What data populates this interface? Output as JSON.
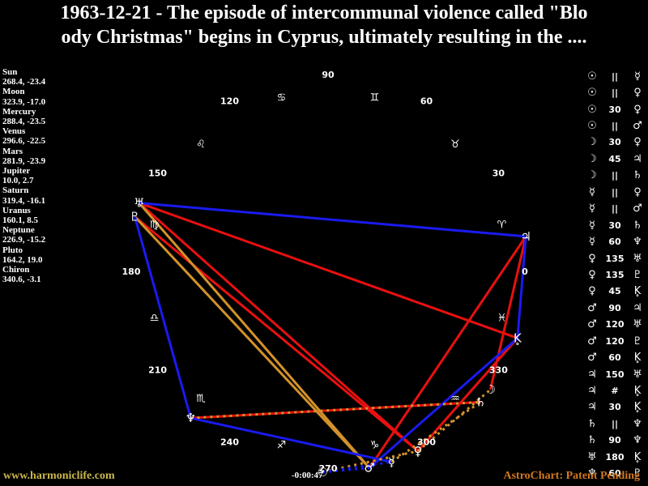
{
  "title": {
    "line1": "1963-12-21 - The episode of intercommunal violence called \"Blo",
    "line2": "ody Christmas\" begins in Cyprus, ultimately resulting in the ...."
  },
  "footer": {
    "left": "www.harmoniclife.com",
    "right": "AstroChart: Patent Pending"
  },
  "chart_data": {
    "type": "radial-astrology-wheel",
    "center": [
      405,
      335
    ],
    "planet_radius": 248,
    "zodiac_radius": 222,
    "label_radius": 243,
    "degree_labels": [
      0,
      30,
      60,
      90,
      120,
      150,
      180,
      210,
      240,
      270,
      300,
      330
    ],
    "zodiac": [
      {
        "name": "Aries",
        "glyph": "♈"
      },
      {
        "name": "Taurus",
        "glyph": "♉"
      },
      {
        "name": "Gemini",
        "glyph": "♊"
      },
      {
        "name": "Cancer",
        "glyph": "♋"
      },
      {
        "name": "Leo",
        "glyph": "♌"
      },
      {
        "name": "Virgo",
        "glyph": "♍"
      },
      {
        "name": "Libra",
        "glyph": "♎"
      },
      {
        "name": "Scorpio",
        "glyph": "♏"
      },
      {
        "name": "Sagittarius",
        "glyph": "♐"
      },
      {
        "name": "Capricorn",
        "glyph": "♑"
      },
      {
        "name": "Aquarius",
        "glyph": "♒"
      },
      {
        "name": "Pisces",
        "glyph": "♓"
      }
    ],
    "planets": [
      {
        "name": "Sun",
        "glyph": "☉",
        "lon": "268.4",
        "dec": "-23.4"
      },
      {
        "name": "Moon",
        "glyph": "☽",
        "lon": "323.9",
        "dec": "-17.0"
      },
      {
        "name": "Mercury",
        "glyph": "☿",
        "lon": "288.4",
        "dec": "-23.5"
      },
      {
        "name": "Venus",
        "glyph": "♀",
        "lon": "296.6",
        "dec": "-22.5"
      },
      {
        "name": "Mars",
        "glyph": "♂",
        "lon": "281.9",
        "dec": "-23.9"
      },
      {
        "name": "Jupiter",
        "glyph": "♃",
        "lon": "10.0",
        "dec": "2.7"
      },
      {
        "name": "Saturn",
        "glyph": "♄",
        "lon": "319.4",
        "dec": "-16.1"
      },
      {
        "name": "Uranus",
        "glyph": "♅",
        "lon": "160.1",
        "dec": "8.5"
      },
      {
        "name": "Neptune",
        "glyph": "♆",
        "lon": "226.9",
        "dec": "-15.2"
      },
      {
        "name": "Pluto",
        "glyph": "♇",
        "lon": "164.2",
        "dec": "19.0"
      },
      {
        "name": "Chiron",
        "glyph": "K̥",
        "lon": "340.6",
        "dec": "-3.1"
      }
    ],
    "colors": {
      "red": "#e81010",
      "blue": "#1a1af0",
      "gold": "#d3922a"
    },
    "lines": [
      {
        "from": "Uranus",
        "to": "Chiron",
        "aspect": "180",
        "color": "red",
        "dotted": false
      },
      {
        "from": "Neptune",
        "to": "Saturn",
        "aspect": "90",
        "color": "red",
        "dotted": false
      },
      {
        "from": "Jupiter",
        "to": "Mars",
        "aspect": "90",
        "color": "red",
        "dotted": false
      },
      {
        "from": "Uranus",
        "to": "Venus",
        "aspect": "135",
        "color": "red",
        "dotted": false
      },
      {
        "from": "Pluto",
        "to": "Venus",
        "aspect": "135",
        "color": "red",
        "dotted": false
      },
      {
        "from": "Chiron",
        "to": "Venus",
        "aspect": "45",
        "color": "red",
        "dotted": false
      },
      {
        "from": "Jupiter",
        "to": "Moon",
        "aspect": "45",
        "color": "red",
        "dotted": false
      },
      {
        "from": "Uranus",
        "to": "Mars",
        "aspect": "120",
        "color": "gold",
        "dotted": false
      },
      {
        "from": "Pluto",
        "to": "Mars",
        "aspect": "120",
        "color": "gold",
        "dotted": false
      },
      {
        "from": "Uranus",
        "to": "Jupiter",
        "aspect": "150",
        "color": "blue",
        "dotted": false
      },
      {
        "from": "Neptune",
        "to": "Mercury",
        "aspect": "60",
        "color": "blue",
        "dotted": false
      },
      {
        "from": "Chiron",
        "to": "Mars",
        "aspect": "60",
        "color": "blue",
        "dotted": false
      },
      {
        "from": "Pluto",
        "to": "Neptune",
        "aspect": "60",
        "color": "blue",
        "dotted": false
      },
      {
        "from": "Jupiter",
        "to": "Chiron",
        "aspect": "30",
        "color": "blue",
        "dotted": false
      },
      {
        "from": "Neptune",
        "to": "Saturn",
        "aspect": "parallel",
        "color": "gold",
        "dotted": true
      },
      {
        "from": "Sun",
        "to": "Venus",
        "aspect": "30",
        "color": "gold",
        "dotted": true
      },
      {
        "from": "Venus",
        "to": "Moon",
        "aspect": "30",
        "color": "gold",
        "dotted": true
      },
      {
        "from": "Mercury",
        "to": "Saturn",
        "aspect": "30",
        "color": "gold",
        "dotted": true
      },
      {
        "from": "Sun",
        "to": "Mercury",
        "aspect": "parallel",
        "color": "blue",
        "dotted": true
      },
      {
        "from": "Sun",
        "to": "Mars",
        "aspect": "parallel",
        "color": "blue",
        "dotted": true
      }
    ],
    "sun_annotation": "-0:00:47"
  },
  "aspect_table": [
    {
      "p1": "☉",
      "aspect": "||",
      "p2": "☿"
    },
    {
      "p1": "☉",
      "aspect": "||",
      "p2": "♀"
    },
    {
      "p1": "☉",
      "aspect": "30",
      "p2": "♀"
    },
    {
      "p1": "☉",
      "aspect": "||",
      "p2": "♂"
    },
    {
      "p1": "☽",
      "aspect": "30",
      "p2": "♀"
    },
    {
      "p1": "☽",
      "aspect": "45",
      "p2": "♃"
    },
    {
      "p1": "☽",
      "aspect": "||",
      "p2": "♄"
    },
    {
      "p1": "☿",
      "aspect": "||",
      "p2": "♀"
    },
    {
      "p1": "☿",
      "aspect": "||",
      "p2": "♂"
    },
    {
      "p1": "☿",
      "aspect": "30",
      "p2": "♄"
    },
    {
      "p1": "☿",
      "aspect": "60",
      "p2": "♆"
    },
    {
      "p1": "♀",
      "aspect": "135",
      "p2": "♅"
    },
    {
      "p1": "♀",
      "aspect": "135",
      "p2": "♇"
    },
    {
      "p1": "♀",
      "aspect": "45",
      "p2": "K̥"
    },
    {
      "p1": "♂",
      "aspect": "90",
      "p2": "♃"
    },
    {
      "p1": "♂",
      "aspect": "120",
      "p2": "♅"
    },
    {
      "p1": "♂",
      "aspect": "120",
      "p2": "♇"
    },
    {
      "p1": "♂",
      "aspect": "60",
      "p2": "K̥"
    },
    {
      "p1": "♃",
      "aspect": "150",
      "p2": "♅"
    },
    {
      "p1": "♃",
      "aspect": "#",
      "p2": "K̥"
    },
    {
      "p1": "♃",
      "aspect": "30",
      "p2": "K̥"
    },
    {
      "p1": "♄",
      "aspect": "||",
      "p2": "♆"
    },
    {
      "p1": "♄",
      "aspect": "90",
      "p2": "♆"
    },
    {
      "p1": "♅",
      "aspect": "180",
      "p2": "K̥"
    },
    {
      "p1": "♆",
      "aspect": "60",
      "p2": "♇"
    }
  ]
}
